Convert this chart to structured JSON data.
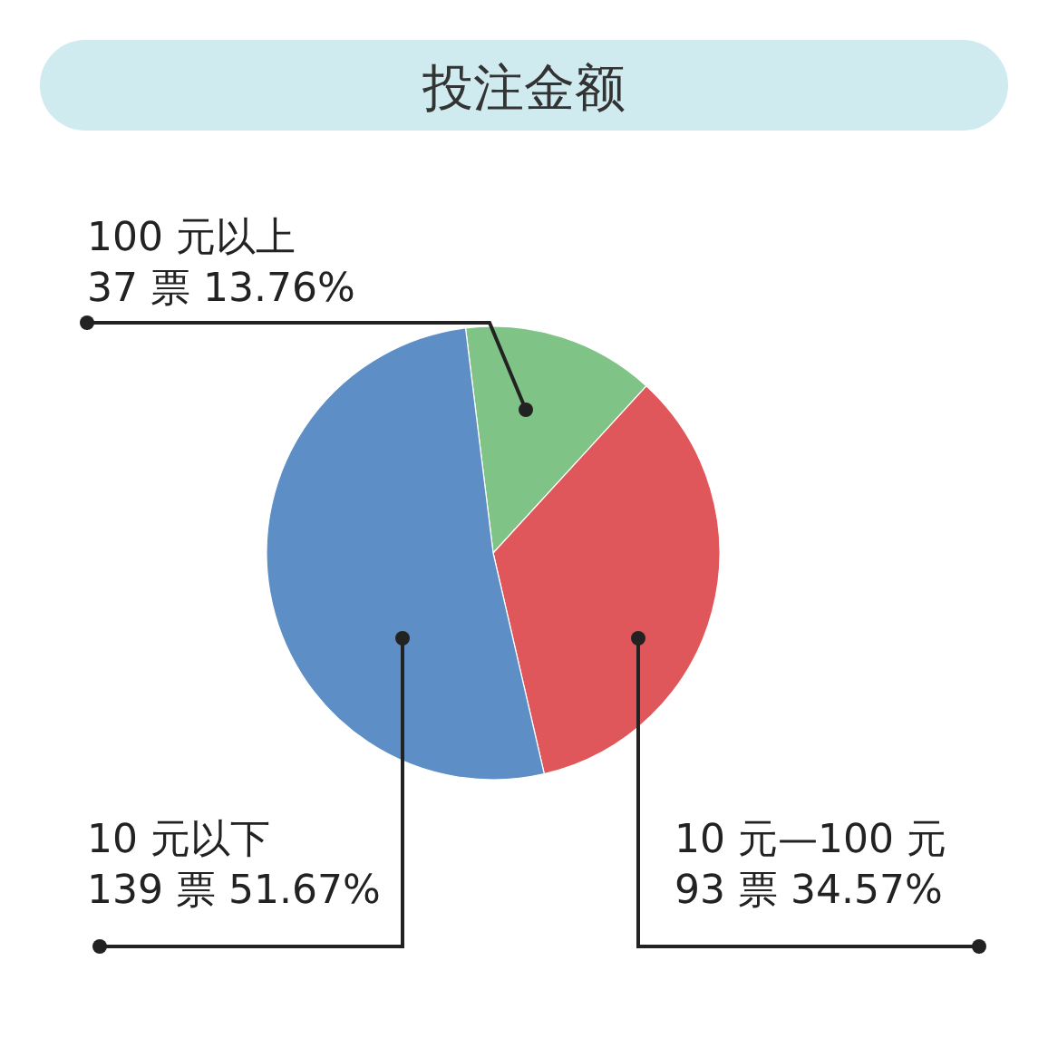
{
  "chart_data": {
    "type": "pie",
    "title": "投注金额",
    "categories": [
      "100 元以上",
      "10 元—100 元",
      "10 元以下"
    ],
    "values": [
      37,
      93,
      139
    ],
    "value_labels": [
      "37 票 13.76%",
      "93 票 34.57%",
      "139 票 51.67%"
    ],
    "colors": [
      "#7fc486",
      "#e0575b",
      "#5d8fc6"
    ]
  }
}
